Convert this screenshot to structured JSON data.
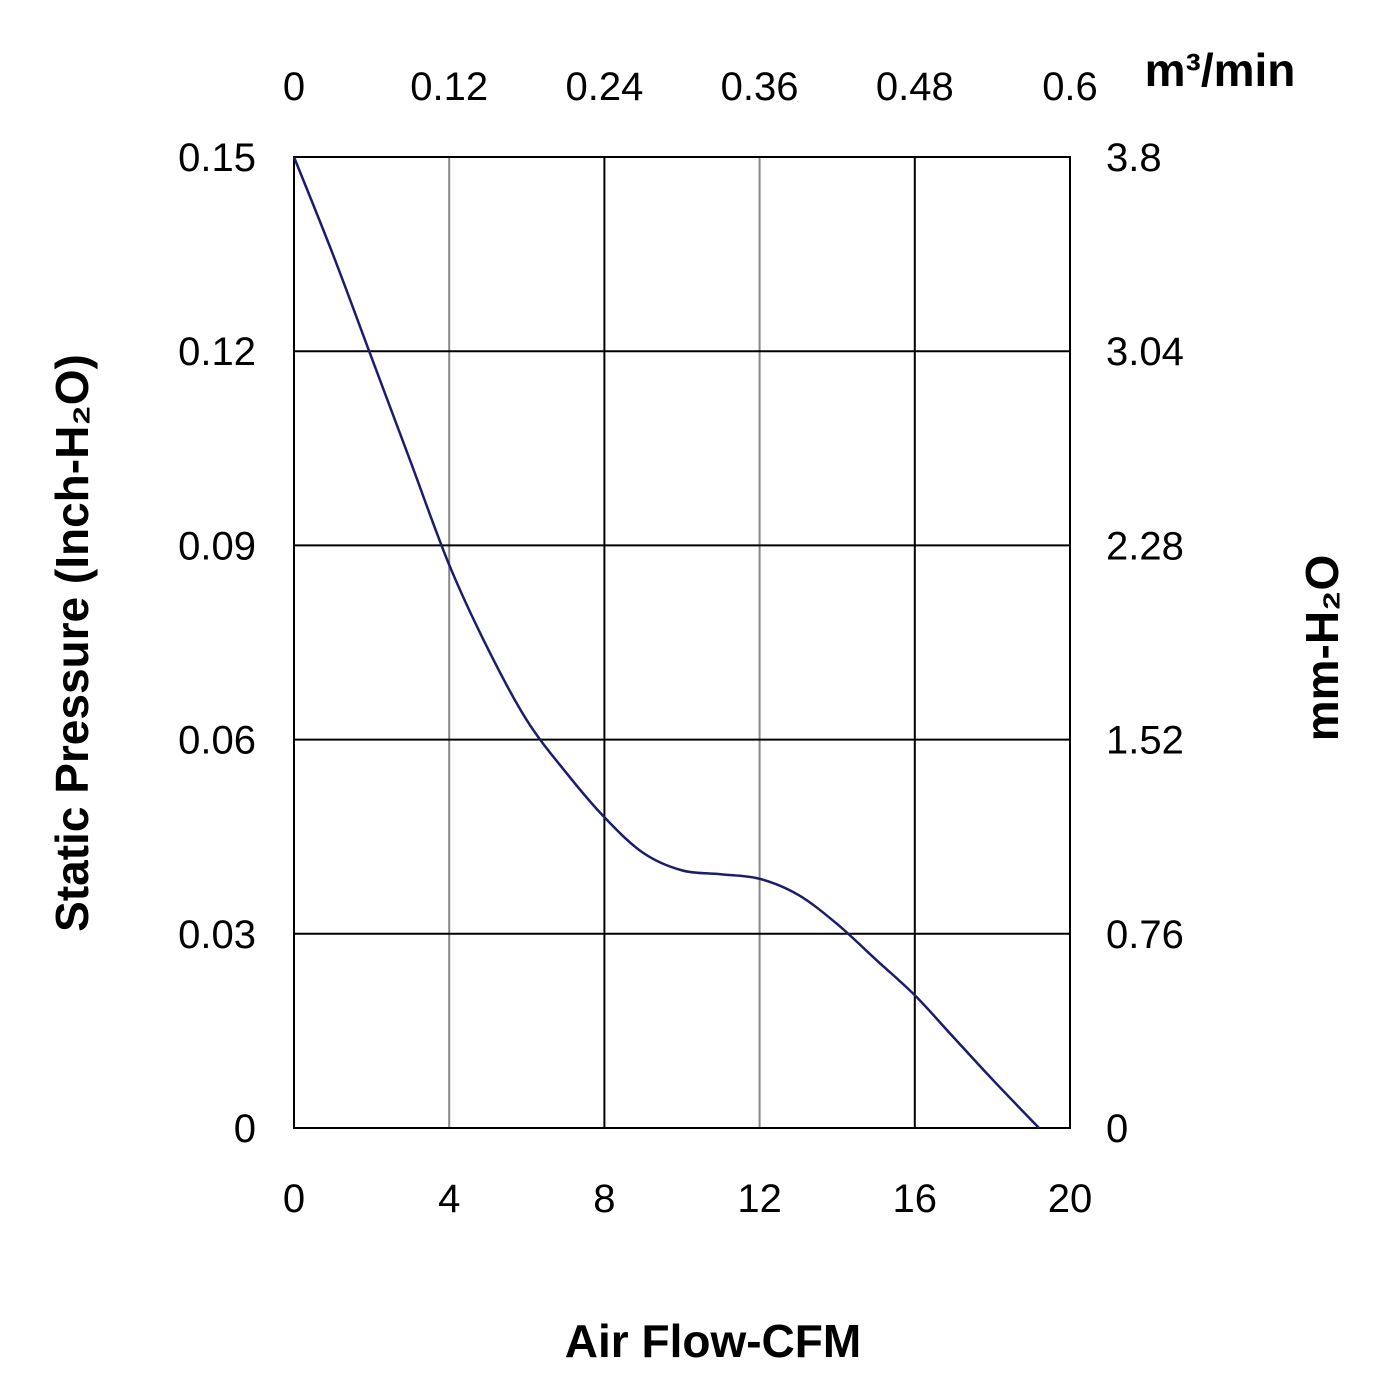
{
  "chart_data": {
    "type": "line",
    "title": "",
    "xlabel": "Air Flow-CFM",
    "ylabel": "Static Pressure (Inch-H₂O)",
    "x2label": "m³/min",
    "y2label": "mm-H₂O",
    "xlim": [
      0,
      20
    ],
    "ylim": [
      0,
      0.15
    ],
    "xticks": [
      "0",
      "4",
      "8",
      "12",
      "16",
      "20"
    ],
    "yticks": [
      "0",
      "0.03",
      "0.06",
      "0.09",
      "0.12",
      "0.15"
    ],
    "x2ticks": [
      "0",
      "0.12",
      "0.24",
      "0.36",
      "0.48",
      "0.6"
    ],
    "y2ticks": [
      "0",
      "0.76",
      "1.52",
      "2.28",
      "3.04",
      "3.8"
    ],
    "grid": true,
    "line_color": "#1c1c6b",
    "series": [
      {
        "name": "Static Pressure",
        "x": [
          0,
          1,
          2,
          3,
          4,
          5,
          6,
          7,
          8,
          9,
          10,
          11,
          12,
          13,
          14,
          15,
          16,
          17,
          18,
          19.2
        ],
        "y": [
          0.15,
          0.135,
          0.119,
          0.103,
          0.087,
          0.074,
          0.063,
          0.055,
          0.048,
          0.0425,
          0.0398,
          0.0392,
          0.0385,
          0.036,
          0.0315,
          0.026,
          0.0205,
          0.014,
          0.0075,
          0
        ]
      }
    ]
  }
}
